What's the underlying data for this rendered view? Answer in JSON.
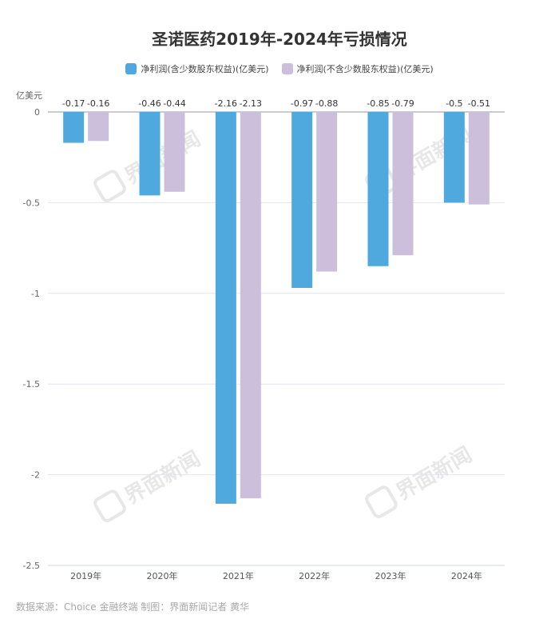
{
  "chart_data": {
    "type": "bar",
    "title": "圣诺医药2019年-2024年亏损情况",
    "ylabel": "亿美元",
    "xlabel": "",
    "categories": [
      "2019年",
      "2020年",
      "2021年",
      "2022年",
      "2023年",
      "2024年"
    ],
    "series": [
      {
        "name": "净利润(含少数股东权益)(亿美元)",
        "values": [
          -0.17,
          -0.46,
          -2.16,
          -0.97,
          -0.85,
          -0.5
        ],
        "labels": [
          "-0.17",
          "-0.46",
          "-2.16",
          "-0.97",
          "-0.85",
          "-0.5"
        ],
        "color": "#4fa8de"
      },
      {
        "name": "净利润(不含少数股东权益)(亿美元)",
        "values": [
          -0.16,
          -0.44,
          -2.13,
          -0.88,
          -0.79,
          -0.51
        ],
        "labels": [
          "-0.16",
          "-0.44",
          "-2.13",
          "-0.88",
          "-0.79",
          "-0.51"
        ],
        "color": "#cbbfdc"
      }
    ],
    "ylim": [
      -2.5,
      0
    ],
    "yticks": [
      "0",
      "-0.5",
      "-1",
      "-1.5",
      "-2",
      "-2.5"
    ],
    "grid": true,
    "legend": "top-center"
  },
  "watermark": "界面新闻",
  "source": "数据来源：Choice 金融终端 制图：界面新闻记者 黄华"
}
